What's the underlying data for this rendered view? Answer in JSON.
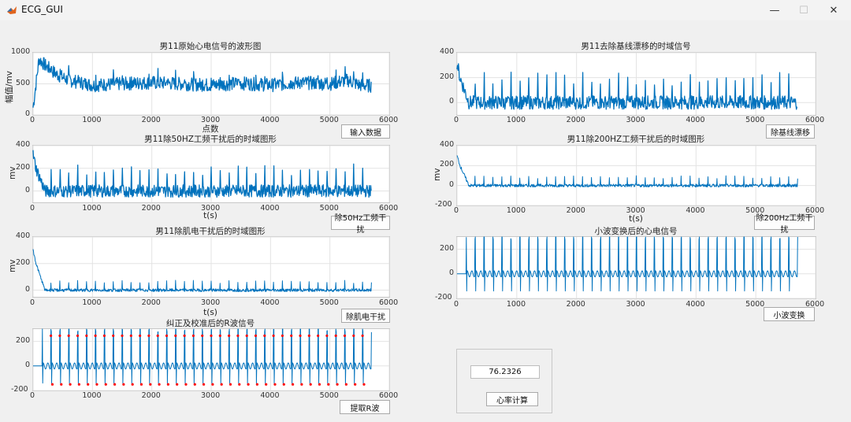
{
  "window": {
    "title": "ECG_GUI",
    "minimize_glyph": "—",
    "restore_glyph": "☐",
    "close_glyph": "✕"
  },
  "colors": {
    "signal": "#0072bd",
    "peak": "#ff0000",
    "grid": "#e3e3e3"
  },
  "plots": {
    "p1": {
      "title": "男11原始心电信号的波形图",
      "xlabel": "点数",
      "ylabel": "幅值/mv",
      "xticks": [
        "0",
        "1000",
        "2000",
        "3000",
        "4000",
        "5000",
        "6000"
      ],
      "yticks": [
        "1000",
        "500",
        "0"
      ],
      "button": "输入数据"
    },
    "p2": {
      "title": "男11去除基线漂移的时域信号",
      "xlabel": "",
      "ylabel": "",
      "xticks": [
        "0",
        "1000",
        "2000",
        "3000",
        "4000",
        "5000",
        "6000"
      ],
      "yticks": [
        "400",
        "200",
        "0"
      ],
      "button": "除基线漂移"
    },
    "p3": {
      "title": "男11除50HZ工频干扰后的时域图形",
      "xlabel": "t(s)",
      "ylabel": "mv",
      "xticks": [
        "0",
        "1000",
        "2000",
        "3000",
        "4000",
        "5000",
        "6000"
      ],
      "yticks": [
        "400",
        "200",
        "0"
      ],
      "button": "除50Hz工频干扰"
    },
    "p4": {
      "title": "男11除200HZ工频干扰后的时域图形",
      "xlabel": "t(s)",
      "ylabel": "mv",
      "xticks": [
        "0",
        "1000",
        "2000",
        "3000",
        "4000",
        "5000",
        "6000"
      ],
      "yticks": [
        "400",
        "200",
        "0",
        "-200"
      ],
      "button": "除200Hz工频干扰"
    },
    "p5": {
      "title": "男11除肌电干扰后的时域图形",
      "xlabel": "t(s)",
      "ylabel": "mv",
      "xticks": [
        "0",
        "1000",
        "2000",
        "3000",
        "4000",
        "5000",
        "6000"
      ],
      "yticks": [
        "400",
        "200",
        "0"
      ],
      "button": "除肌电干扰"
    },
    "p6": {
      "title": "小波变换后的心电信号",
      "xlabel": "",
      "ylabel": "",
      "xticks": [
        "0",
        "1000",
        "2000",
        "3000",
        "4000",
        "5000",
        "6000"
      ],
      "yticks": [
        "200",
        "0",
        "-200"
      ],
      "button": "小波变换"
    },
    "p7": {
      "title": "纠正及校准后的R波信号",
      "xlabel": "",
      "ylabel": "",
      "xticks": [
        "0",
        "1000",
        "2000",
        "3000",
        "4000",
        "5000",
        "6000"
      ],
      "yticks": [
        "200",
        "0",
        "-200"
      ],
      "button": "提取R波"
    }
  },
  "heart_rate": {
    "value": "76.2326",
    "button": "心率计算"
  },
  "chart_data": [
    {
      "type": "line",
      "title": "男11原始心电信号的波形图",
      "xlabel": "点数",
      "ylabel": "幅值/mv",
      "xlim": [
        0,
        6000
      ],
      "ylim": [
        0,
        1000
      ],
      "x": [
        0,
        100,
        200,
        400,
        600,
        800,
        1000,
        1500,
        2000,
        2500,
        3000,
        3500,
        4000,
        4500,
        5000,
        5300,
        5500,
        5700
      ],
      "y": [
        120,
        900,
        800,
        650,
        560,
        520,
        480,
        500,
        520,
        500,
        480,
        510,
        480,
        520,
        500,
        560,
        480,
        470
      ],
      "grid": true
    },
    {
      "type": "line",
      "title": "男11去除基线漂移的时域信号",
      "xlim": [
        0,
        6000
      ],
      "ylim": [
        -100,
        400
      ],
      "x": [
        0,
        50,
        200,
        500,
        1000,
        2000,
        3000,
        4000,
        5000,
        5300,
        5700
      ],
      "y": [
        320,
        200,
        0,
        0,
        0,
        0,
        0,
        0,
        0,
        0,
        0
      ],
      "grid": true
    },
    {
      "type": "line",
      "title": "男11除50HZ工频干扰后的时域图形",
      "xlabel": "t(s)",
      "ylabel": "mv",
      "xlim": [
        0,
        6000
      ],
      "ylim": [
        -100,
        400
      ],
      "x": [
        0,
        50,
        200,
        500,
        1000,
        2000,
        3000,
        4000,
        5000,
        5300,
        5700
      ],
      "y": [
        320,
        200,
        0,
        0,
        0,
        0,
        0,
        0,
        0,
        0,
        0
      ],
      "grid": true
    },
    {
      "type": "line",
      "title": "男11除200HZ工频干扰后的时域图形",
      "xlabel": "t(s)",
      "ylabel": "mv",
      "xlim": [
        0,
        6000
      ],
      "ylim": [
        -200,
        400
      ],
      "x": [
        0,
        50,
        200,
        500,
        1000,
        2000,
        3000,
        4000,
        5000,
        5300,
        5700
      ],
      "y": [
        300,
        200,
        0,
        0,
        0,
        0,
        0,
        0,
        0,
        0,
        0
      ],
      "grid": true
    },
    {
      "type": "line",
      "title": "男11除肌电干扰后的时域图形",
      "xlabel": "t(s)",
      "ylabel": "mv",
      "xlim": [
        0,
        6000
      ],
      "ylim": [
        -50,
        400
      ],
      "x": [
        0,
        50,
        200,
        500,
        1000,
        2000,
        3000,
        4000,
        5000,
        5300,
        5700
      ],
      "y": [
        300,
        200,
        0,
        0,
        0,
        0,
        0,
        0,
        0,
        0,
        0
      ],
      "grid": true
    },
    {
      "type": "line",
      "title": "小波变换后的心电信号",
      "xlim": [
        0,
        6000
      ],
      "ylim": [
        -200,
        300
      ],
      "x": [
        0,
        1000,
        2000,
        3000,
        4000,
        5000,
        5700
      ],
      "y": [
        0,
        0,
        0,
        0,
        0,
        0,
        0
      ],
      "grid": true
    },
    {
      "type": "line",
      "title": "纠正及校准后的R波信号",
      "xlim": [
        0,
        6000
      ],
      "ylim": [
        -200,
        300
      ],
      "x": [
        0,
        1000,
        2000,
        3000,
        4000,
        5000,
        5700
      ],
      "y": [
        0,
        0,
        0,
        0,
        0,
        0,
        0
      ],
      "grid": true
    }
  ]
}
